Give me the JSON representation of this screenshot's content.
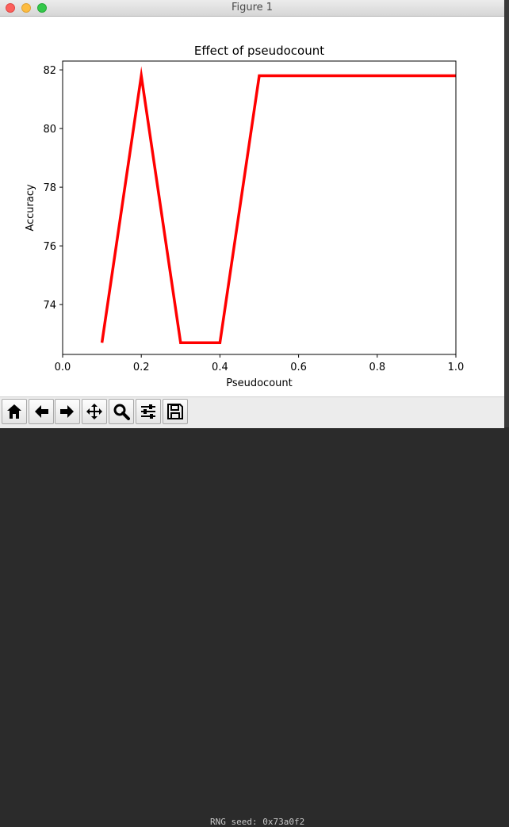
{
  "window": {
    "title": "Figure 1"
  },
  "chart_data": {
    "type": "line",
    "title": "Effect of pseudocount",
    "xlabel": "Pseudocount",
    "ylabel": "Accuracy",
    "xlim": [
      0.0,
      1.0
    ],
    "ylim": [
      72.3,
      82.3
    ],
    "xticks": [
      "0.0",
      "0.2",
      "0.4",
      "0.6",
      "0.8",
      "1.0"
    ],
    "yticks": [
      "74",
      "76",
      "78",
      "80",
      "82"
    ],
    "series": [
      {
        "color": "#ff0000",
        "x": [
          0.1,
          0.2,
          0.3,
          0.4,
          0.5,
          0.6,
          0.7,
          0.8,
          0.9,
          1.0
        ],
        "y": [
          72.7,
          81.8,
          72.7,
          72.7,
          81.8,
          81.8,
          81.8,
          81.8,
          81.8,
          81.8
        ]
      }
    ],
    "grid": false,
    "legend": "none"
  },
  "toolbar": {
    "buttons": [
      {
        "name": "home-button",
        "icon": "home-icon"
      },
      {
        "name": "back-button",
        "icon": "arrow-left-icon"
      },
      {
        "name": "forward-button",
        "icon": "arrow-right-icon"
      },
      {
        "name": "pan-button",
        "icon": "move-icon"
      },
      {
        "name": "zoom-button",
        "icon": "magnifier-icon"
      },
      {
        "name": "configure-subplots-button",
        "icon": "sliders-icon"
      },
      {
        "name": "save-button",
        "icon": "floppy-icon"
      }
    ]
  },
  "background_terminal": {
    "text": "RNG seed: 0x73a0f2"
  }
}
